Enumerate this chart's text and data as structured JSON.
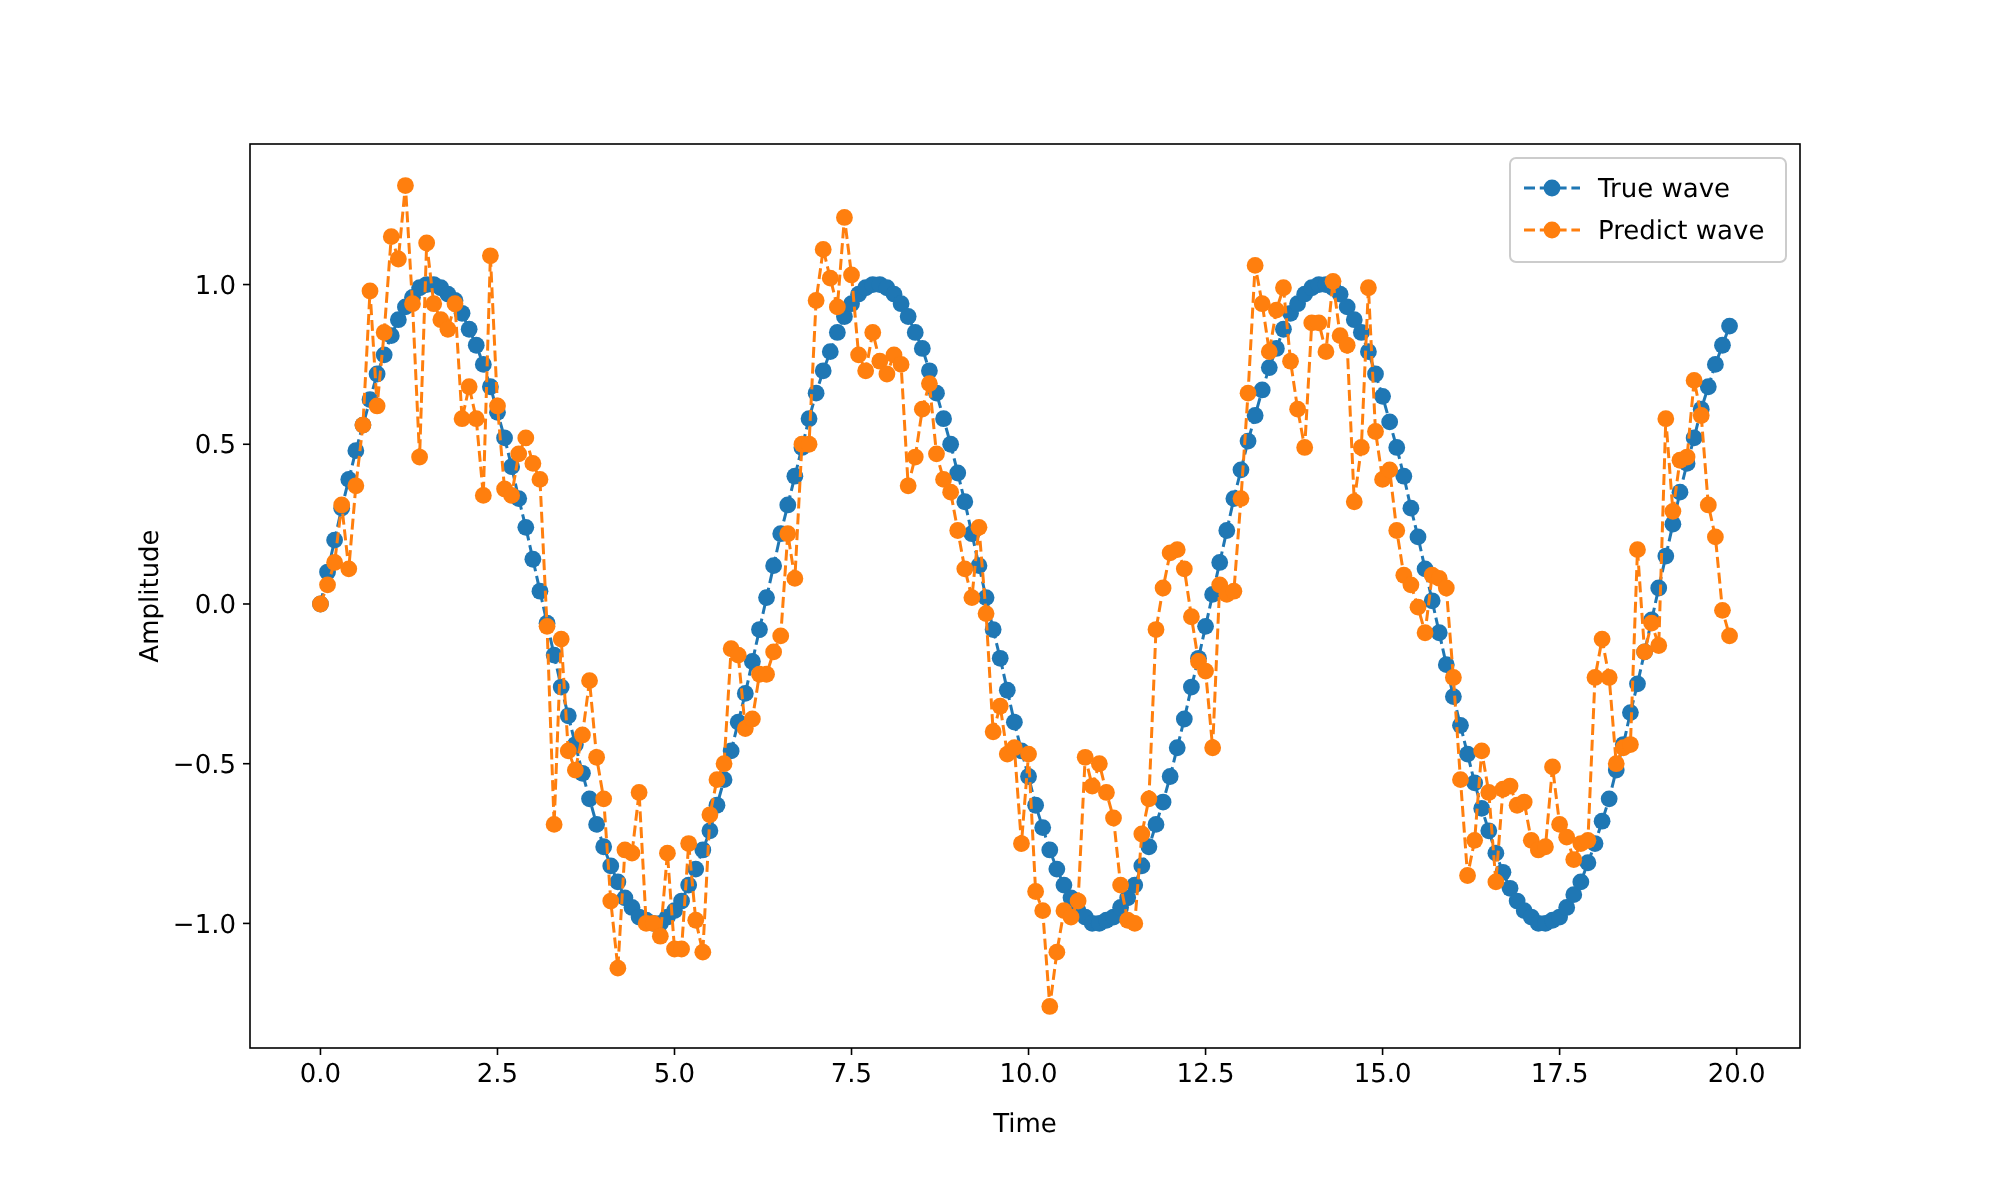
{
  "chart_data": {
    "type": "line",
    "xlabel": "Time",
    "ylabel": "Amplitude",
    "x": [
      0,
      0.1,
      0.2,
      0.3,
      0.4,
      0.5,
      0.6,
      0.7,
      0.8,
      0.9,
      1,
      1.1,
      1.2,
      1.3,
      1.4,
      1.5,
      1.6,
      1.7,
      1.8,
      1.9,
      2,
      2.1,
      2.2,
      2.3,
      2.4,
      2.5,
      2.6,
      2.7,
      2.8,
      2.9,
      3,
      3.1,
      3.2,
      3.3,
      3.4,
      3.5,
      3.6,
      3.7,
      3.8,
      3.9,
      4,
      4.1,
      4.2,
      4.3,
      4.4,
      4.5,
      4.6,
      4.7,
      4.8,
      4.9,
      5,
      5.1,
      5.2,
      5.3,
      5.4,
      5.5,
      5.6,
      5.7,
      5.8,
      5.9,
      6,
      6.1,
      6.2,
      6.3,
      6.4,
      6.5,
      6.6,
      6.7,
      6.8,
      6.9,
      7,
      7.1,
      7.2,
      7.3,
      7.4,
      7.5,
      7.6,
      7.7,
      7.8,
      7.9,
      8,
      8.1,
      8.2,
      8.3,
      8.4,
      8.5,
      8.6,
      8.7,
      8.8,
      8.9,
      9,
      9.1,
      9.2,
      9.3,
      9.4,
      9.5,
      9.6,
      9.7,
      9.8,
      9.9,
      10,
      10.1,
      10.2,
      10.3,
      10.4,
      10.5,
      10.6,
      10.7,
      10.8,
      10.9,
      11,
      11.1,
      11.2,
      11.3,
      11.4,
      11.5,
      11.6,
      11.7,
      11.8,
      11.9,
      12,
      12.1,
      12.2,
      12.3,
      12.4,
      12.5,
      12.6,
      12.7,
      12.8,
      12.9,
      13,
      13.1,
      13.2,
      13.3,
      13.4,
      13.5,
      13.6,
      13.7,
      13.8,
      13.9,
      14,
      14.1,
      14.2,
      14.3,
      14.4,
      14.5,
      14.6,
      14.7,
      14.8,
      14.9,
      15,
      15.1,
      15.2,
      15.3,
      15.4,
      15.5,
      15.6,
      15.7,
      15.8,
      15.9,
      16,
      16.1,
      16.2,
      16.3,
      16.4,
      16.5,
      16.6,
      16.7,
      16.8,
      16.9,
      17,
      17.1,
      17.2,
      17.3,
      17.4,
      17.5,
      17.6,
      17.7,
      17.8,
      17.9,
      18,
      18.1,
      18.2,
      18.3,
      18.4,
      18.5,
      18.6,
      18.7,
      18.8,
      18.9,
      19,
      19.1,
      19.2,
      19.3,
      19.4,
      19.5,
      19.6,
      19.7,
      19.8,
      19.9
    ],
    "series": [
      {
        "name": "True wave",
        "color": "#1f77b4",
        "values": [
          0,
          0.1,
          0.2,
          0.3,
          0.39,
          0.48,
          0.56,
          0.64,
          0.72,
          0.78,
          0.84,
          0.89,
          0.93,
          0.96,
          0.99,
          1,
          1,
          0.99,
          0.97,
          0.95,
          0.91,
          0.86,
          0.81,
          0.75,
          0.68,
          0.6,
          0.52,
          0.43,
          0.33,
          0.24,
          0.14,
          0.04,
          -0.06,
          -0.16,
          -0.26,
          -0.35,
          -0.44,
          -0.53,
          -0.61,
          -0.69,
          -0.76,
          -0.82,
          -0.87,
          -0.92,
          -0.95,
          -0.98,
          -0.99,
          -1,
          -1,
          -0.98,
          -0.96,
          -0.93,
          -0.88,
          -0.83,
          -0.77,
          -0.71,
          -0.63,
          -0.55,
          -0.46,
          -0.37,
          -0.28,
          -0.18,
          -0.08,
          0.02,
          0.12,
          0.22,
          0.31,
          0.4,
          0.49,
          0.58,
          0.66,
          0.73,
          0.79,
          0.85,
          0.9,
          0.94,
          0.97,
          0.99,
          1,
          1,
          0.99,
          0.97,
          0.94,
          0.9,
          0.85,
          0.8,
          0.73,
          0.66,
          0.58,
          0.5,
          0.41,
          0.32,
          0.22,
          0.12,
          0.02,
          -0.08,
          -0.17,
          -0.27,
          -0.37,
          -0.46,
          -0.54,
          -0.63,
          -0.7,
          -0.77,
          -0.83,
          -0.88,
          -0.92,
          -0.96,
          -0.98,
          -1,
          -1,
          -0.99,
          -0.98,
          -0.95,
          -0.92,
          -0.88,
          -0.82,
          -0.76,
          -0.69,
          -0.62,
          -0.54,
          -0.45,
          -0.36,
          -0.26,
          -0.17,
          -0.07,
          0.03,
          0.13,
          0.23,
          0.33,
          0.42,
          0.51,
          0.59,
          0.67,
          0.74,
          0.8,
          0.86,
          0.91,
          0.94,
          0.97,
          0.99,
          1,
          1,
          0.99,
          0.97,
          0.93,
          0.89,
          0.85,
          0.79,
          0.72,
          0.65,
          0.57,
          0.49,
          0.4,
          0.3,
          0.21,
          0.11,
          0.01,
          -0.09,
          -0.19,
          -0.29,
          -0.38,
          -0.47,
          -0.56,
          -0.64,
          -0.71,
          -0.78,
          -0.84,
          -0.89,
          -0.93,
          -0.96,
          -0.98,
          -1,
          -1,
          -0.99,
          -0.98,
          -0.95,
          -0.91,
          -0.87,
          -0.81,
          -0.75,
          -0.68,
          -0.61,
          -0.52,
          -0.44,
          -0.34,
          -0.25,
          -0.15,
          -0.05,
          0.05,
          0.15,
          0.25,
          0.35,
          0.44,
          0.52,
          0.61,
          0.68,
          0.75,
          0.81,
          0.87
        ]
      },
      {
        "name": "Predict wave",
        "color": "#ff7f0e",
        "values": [
          0,
          0.06,
          0.13,
          0.31,
          0.11,
          0.37,
          0.56,
          0.98,
          0.62,
          0.85,
          1.15,
          1.08,
          1.31,
          0.94,
          0.46,
          1.13,
          0.94,
          0.89,
          0.86,
          0.94,
          0.58,
          0.68,
          0.58,
          0.34,
          1.09,
          0.62,
          0.36,
          0.34,
          0.47,
          0.52,
          0.44,
          0.39,
          -0.07,
          -0.69,
          -0.11,
          -0.46,
          -0.52,
          -0.41,
          -0.24,
          -0.48,
          -0.61,
          -0.93,
          -1.14,
          -0.77,
          -0.78,
          -0.59,
          -1,
          -1,
          -1.04,
          -0.78,
          -1.08,
          -1.08,
          -0.75,
          -0.99,
          -1.09,
          -0.66,
          -0.55,
          -0.5,
          -0.14,
          -0.16,
          -0.39,
          -0.36,
          -0.22,
          -0.22,
          -0.15,
          -0.1,
          0.22,
          0.08,
          0.5,
          0.5,
          0.95,
          1.11,
          1.02,
          0.93,
          1.21,
          1.03,
          0.78,
          0.73,
          0.85,
          0.76,
          0.72,
          0.78,
          0.75,
          0.37,
          0.46,
          0.61,
          0.69,
          0.47,
          0.39,
          0.35,
          0.23,
          0.11,
          0.02,
          0.24,
          -0.03,
          -0.4,
          -0.32,
          -0.47,
          -0.45,
          -0.75,
          -0.47,
          -0.9,
          -0.96,
          -1.26,
          -1.09,
          -0.96,
          -0.98,
          -0.93,
          -0.48,
          -0.57,
          -0.5,
          -0.59,
          -0.67,
          -0.88,
          -0.99,
          -1,
          -0.72,
          -0.61,
          -0.08,
          0.05,
          0.16,
          0.17,
          0.11,
          -0.04,
          -0.18,
          -0.21,
          -0.45,
          0.06,
          0.03,
          0.04,
          0.33,
          0.66,
          1.06,
          0.94,
          0.79,
          0.92,
          0.99,
          0.76,
          0.61,
          0.49,
          0.88,
          0.88,
          0.79,
          1.01,
          0.84,
          0.81,
          0.32,
          0.49,
          0.99,
          0.54,
          0.39,
          0.42,
          0.23,
          0.09,
          0.06,
          -0.01,
          -0.09,
          0.09,
          0.08,
          0.05,
          -0.23,
          -0.55,
          -0.85,
          -0.74,
          -0.46,
          -0.59,
          -0.87,
          -0.58,
          -0.57,
          -0.63,
          -0.62,
          -0.74,
          -0.77,
          -0.76,
          -0.51,
          -0.69,
          -0.73,
          -0.8,
          -0.75,
          -0.74,
          -0.23,
          -0.11,
          -0.23,
          -0.5,
          -0.45,
          -0.44,
          0.17,
          -0.15,
          -0.06,
          -0.13,
          0.58,
          0.29,
          0.45,
          0.46,
          0.7,
          0.59,
          0.31,
          0.21,
          -0.02,
          -0.1
        ]
      }
    ],
    "xlim": [
      -0.995,
      20.895
    ],
    "ylim": [
      -1.39,
      1.44
    ],
    "xticks": [
      {
        "value": 0,
        "label": "0.0"
      },
      {
        "value": 2.5,
        "label": "2.5"
      },
      {
        "value": 5,
        "label": "5.0"
      },
      {
        "value": 7.5,
        "label": "7.5"
      },
      {
        "value": 10,
        "label": "10.0"
      },
      {
        "value": 12.5,
        "label": "12.5"
      },
      {
        "value": 15,
        "label": "15.0"
      },
      {
        "value": 17.5,
        "label": "17.5"
      },
      {
        "value": 20,
        "label": "20.0"
      }
    ],
    "yticks": [
      {
        "value": -1,
        "label": "−1.0"
      },
      {
        "value": -0.5,
        "label": "−0.5"
      },
      {
        "value": 0,
        "label": "0.0"
      },
      {
        "value": 0.5,
        "label": "0.5"
      },
      {
        "value": 1,
        "label": "1.0"
      }
    ],
    "legend": "top right",
    "marker": "circle",
    "line_style": "dashed",
    "grid": false
  }
}
